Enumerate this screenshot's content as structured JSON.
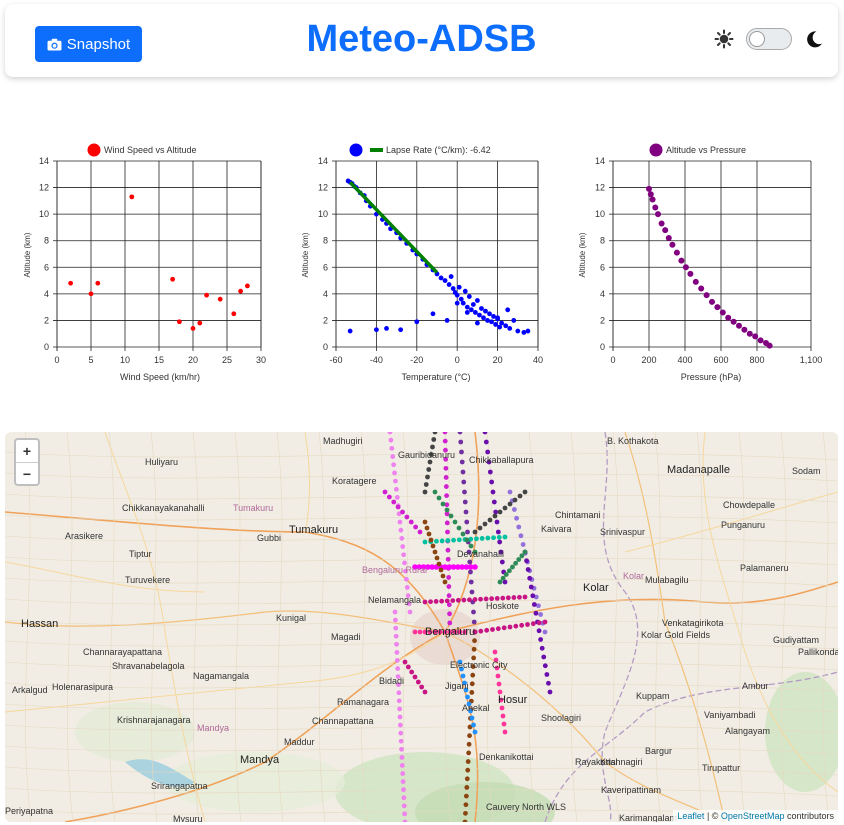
{
  "header": {
    "snapshot_label": "Snapshot",
    "title": "Meteo-ADSB"
  },
  "charts": {
    "chart1": {
      "legend": "Wind Speed vs Altitude",
      "xlabel": "Wind Speed (km/hr)",
      "ylabel": "Altitude (km)",
      "xticks": [
        "0",
        "5",
        "10",
        "15",
        "20",
        "25",
        "30"
      ],
      "yticks": [
        "0",
        "2",
        "4",
        "6",
        "8",
        "10",
        "12",
        "14"
      ]
    },
    "chart2": {
      "legend1": "",
      "legend2": "Lapse Rate (°C/km): -6.42",
      "xlabel": "Temperature (°C)",
      "ylabel": "Altitude (km)",
      "xticks": [
        "-60",
        "-40",
        "-20",
        "0",
        "20",
        "40"
      ],
      "yticks": [
        "0",
        "2",
        "4",
        "6",
        "8",
        "10",
        "12",
        "14"
      ]
    },
    "chart3": {
      "legend": "Altitude vs Pressure",
      "xlabel": "Pressure (hPa)",
      "ylabel": "Altitude (km)",
      "xticks": [
        "0",
        "200",
        "400",
        "600",
        "800",
        "1,100"
      ],
      "yticks": [
        "0",
        "2",
        "4",
        "6",
        "8",
        "10",
        "12",
        "14"
      ]
    }
  },
  "chart_data": [
    {
      "type": "scatter",
      "series": [
        {
          "name": "Wind Speed vs Altitude",
          "color": "#ff0000",
          "x": [
            2,
            5,
            6,
            11,
            17,
            18,
            20,
            21,
            22,
            24,
            26,
            27,
            28
          ],
          "y": [
            4.8,
            4.0,
            4.8,
            11.3,
            5.1,
            1.9,
            1.4,
            1.8,
            3.9,
            3.6,
            2.5,
            4.2,
            4.6
          ]
        }
      ],
      "xlim": [
        0,
        30
      ],
      "ylim": [
        0,
        14
      ]
    },
    {
      "type": "scatter",
      "series": [
        {
          "name": "",
          "color": "#0000ff",
          "x": [
            -54,
            -53,
            -52,
            -51,
            -50,
            -48,
            -46,
            -45,
            -43,
            -40,
            -37,
            -35,
            -33,
            -30,
            -28,
            -25,
            -22,
            -20,
            -17,
            -15,
            -12,
            -10,
            -8,
            -6,
            -4,
            -3,
            -2,
            -1,
            0,
            1,
            2,
            3,
            4,
            5,
            6,
            7,
            8,
            9,
            10,
            11,
            12,
            13,
            14,
            15,
            16,
            17,
            18,
            19,
            20,
            21,
            22,
            24,
            26,
            28,
            30,
            33,
            -53,
            -40,
            -35,
            -28,
            -20,
            -12,
            -5,
            0,
            5,
            10,
            20,
            25,
            35
          ],
          "y": [
            12.5,
            12.4,
            12.3,
            12.1,
            12.0,
            11.6,
            11.4,
            11.0,
            10.6,
            10.0,
            9.6,
            9.3,
            8.9,
            8.6,
            8.2,
            7.8,
            7.3,
            7.0,
            6.6,
            6.2,
            5.8,
            5.5,
            5.2,
            5.0,
            4.7,
            5.3,
            4.4,
            4.1,
            3.9,
            4.5,
            3.6,
            3.3,
            4.2,
            3.0,
            3.8,
            2.8,
            3.2,
            2.6,
            3.5,
            2.4,
            2.9,
            2.2,
            2.7,
            2.0,
            2.5,
            1.9,
            2.3,
            1.7,
            2.1,
            1.5,
            1.8,
            1.6,
            1.4,
            2.0,
            1.2,
            1.1,
            1.2,
            1.3,
            1.4,
            1.3,
            1.9,
            2.5,
            2.0,
            3.3,
            2.6,
            1.8,
            2.2,
            2.8,
            1.2
          ]
        },
        {
          "name": "Lapse Rate (°C/km): -6.42",
          "color": "#008000",
          "type": "line",
          "x": [
            -53,
            -10
          ],
          "y": [
            12.4,
            5.6
          ]
        }
      ],
      "xlim": [
        -60,
        40
      ],
      "ylim": [
        0,
        14
      ]
    },
    {
      "type": "scatter",
      "series": [
        {
          "name": "Altitude vs Pressure",
          "color": "#800080",
          "x": [
            200,
            210,
            220,
            235,
            250,
            270,
            290,
            310,
            330,
            355,
            380,
            405,
            430,
            460,
            490,
            520,
            550,
            580,
            610,
            640,
            670,
            700,
            730,
            760,
            790,
            820,
            850,
            870
          ],
          "y": [
            11.9,
            11.5,
            11.1,
            10.5,
            10.0,
            9.3,
            8.8,
            8.2,
            7.7,
            7.1,
            6.5,
            6.0,
            5.5,
            4.9,
            4.4,
            3.9,
            3.4,
            3.0,
            2.6,
            2.2,
            1.9,
            1.6,
            1.3,
            1.0,
            0.8,
            0.5,
            0.3,
            0.1
          ]
        }
      ],
      "xlim": [
        0,
        1100
      ],
      "ylim": [
        0,
        14
      ]
    }
  ],
  "map": {
    "zoom_in": "+",
    "zoom_out": "−",
    "attribution_leaflet": "Leaflet",
    "attribution_sep": " | © ",
    "attribution_osm": "OpenStreetMap",
    "attribution_rest": " contributors",
    "places": [
      {
        "name": "Madhugiri",
        "cls": ""
      },
      {
        "name": "B. Kothakota",
        "cls": ""
      },
      {
        "name": "Huliyaru",
        "cls": ""
      },
      {
        "name": "Gauribidanuru",
        "cls": ""
      },
      {
        "name": "Madanapalle",
        "cls": "big"
      },
      {
        "name": "Sodam",
        "cls": ""
      },
      {
        "name": "Koratagere",
        "cls": ""
      },
      {
        "name": "Chikkaballapura",
        "cls": ""
      },
      {
        "name": "Chintamani",
        "cls": ""
      },
      {
        "name": "Chowdepalle",
        "cls": ""
      },
      {
        "name": "Chikkanayakanahalli",
        "cls": ""
      },
      {
        "name": "Tumakuru",
        "cls": "area"
      },
      {
        "name": "Punganuru",
        "cls": ""
      },
      {
        "name": "Tumakuru",
        "cls": "big"
      },
      {
        "name": "Arasikere",
        "cls": ""
      },
      {
        "name": "Gubbi",
        "cls": ""
      },
      {
        "name": "Kaivara",
        "cls": ""
      },
      {
        "name": "Srinivaspur",
        "cls": ""
      },
      {
        "name": "Tiptur",
        "cls": ""
      },
      {
        "name": "Devanahalli",
        "cls": ""
      },
      {
        "name": "Turuvekere",
        "cls": ""
      },
      {
        "name": "Bengaluru Rural",
        "cls": "area"
      },
      {
        "name": "Palamaneru",
        "cls": ""
      },
      {
        "name": "Kolar",
        "cls": "big"
      },
      {
        "name": "Kolar",
        "cls": "area"
      },
      {
        "name": "Mulabagilu",
        "cls": ""
      },
      {
        "name": "Nelamangala",
        "cls": ""
      },
      {
        "name": "Hoskote",
        "cls": ""
      },
      {
        "name": "Hassan",
        "cls": "big"
      },
      {
        "name": "Kunigal",
        "cls": ""
      },
      {
        "name": "Venkatagirikota",
        "cls": ""
      },
      {
        "name": "Bengaluru",
        "cls": "big"
      },
      {
        "name": "Kolar Gold Fields",
        "cls": ""
      },
      {
        "name": "Gudiyattam",
        "cls": ""
      },
      {
        "name": "Channarayapattana",
        "cls": ""
      },
      {
        "name": "Magadi",
        "cls": ""
      },
      {
        "name": "Pallikondai",
        "cls": ""
      },
      {
        "name": "Shravanabelagola",
        "cls": ""
      },
      {
        "name": "Electronic City",
        "cls": ""
      },
      {
        "name": "Nagamangala",
        "cls": ""
      },
      {
        "name": "Bidadi",
        "cls": ""
      },
      {
        "name": "Jigani",
        "cls": ""
      },
      {
        "name": "Hosur",
        "cls": "big"
      },
      {
        "name": "Holenarasipura",
        "cls": ""
      },
      {
        "name": "Ambur",
        "cls": ""
      },
      {
        "name": "Arkalgud",
        "cls": ""
      },
      {
        "name": "Ramanagara",
        "cls": ""
      },
      {
        "name": "Kuppam",
        "cls": ""
      },
      {
        "name": "Anekal",
        "cls": ""
      },
      {
        "name": "Krishnarajanagara",
        "cls": ""
      },
      {
        "name": "Channapattana",
        "cls": ""
      },
      {
        "name": "Shoolagiri",
        "cls": ""
      },
      {
        "name": "Vaniyambadi",
        "cls": ""
      },
      {
        "name": "Mandya",
        "cls": "area"
      },
      {
        "name": "Maddur",
        "cls": ""
      },
      {
        "name": "Alangayam",
        "cls": ""
      },
      {
        "name": "Bargur",
        "cls": ""
      },
      {
        "name": "Mandya",
        "cls": "big"
      },
      {
        "name": "Denkanikottai",
        "cls": ""
      },
      {
        "name": "Rayakottai",
        "cls": ""
      },
      {
        "name": "Krishnagiri",
        "cls": ""
      },
      {
        "name": "Tirupattur",
        "cls": ""
      },
      {
        "name": "Srirangapatna",
        "cls": ""
      },
      {
        "name": "Kaveripattinam",
        "cls": ""
      },
      {
        "name": "Periyapatna",
        "cls": ""
      },
      {
        "name": "Cauvery North WLS",
        "cls": ""
      },
      {
        "name": "Mysuru",
        "cls": ""
      },
      {
        "name": "Karimangalam",
        "cls": ""
      }
    ]
  }
}
